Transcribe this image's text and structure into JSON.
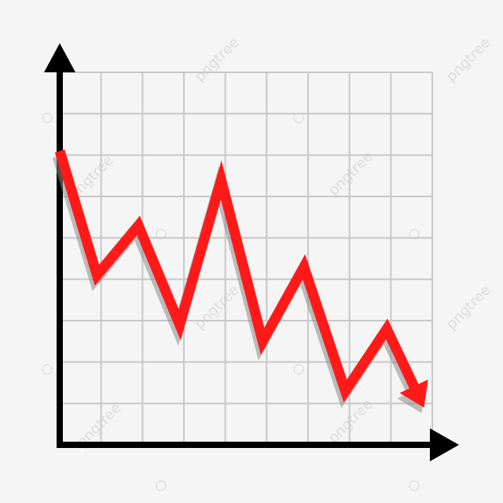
{
  "colors": {
    "background": "#f5f5f5",
    "grid": "#c8c8c8",
    "axis": "#000000",
    "line": "#ff1a1a",
    "shadow": "#8a8a8a"
  },
  "icons": {
    "y_axis_arrow": "arrow-up-icon",
    "x_axis_arrow": "arrow-right-icon",
    "line_end_arrow": "arrow-down-right-icon"
  },
  "watermark": {
    "text": "pngtree"
  },
  "chart_data": {
    "type": "line",
    "title": "",
    "xlabel": "",
    "ylabel": "",
    "grid": true,
    "axis_tick_labels": false,
    "xlim": [
      0,
      9
    ],
    "ylim": [
      0,
      9
    ],
    "series": [
      {
        "x": [
          0,
          0.9,
          1.9,
          2.9,
          3.9,
          4.9,
          5.9,
          6.9,
          7.9,
          8.8
        ],
        "y": [
          7.1,
          4.1,
          5.3,
          2.9,
          6.4,
          2.5,
          4.3,
          1.3,
          2.8,
          0.9
        ]
      }
    ]
  }
}
